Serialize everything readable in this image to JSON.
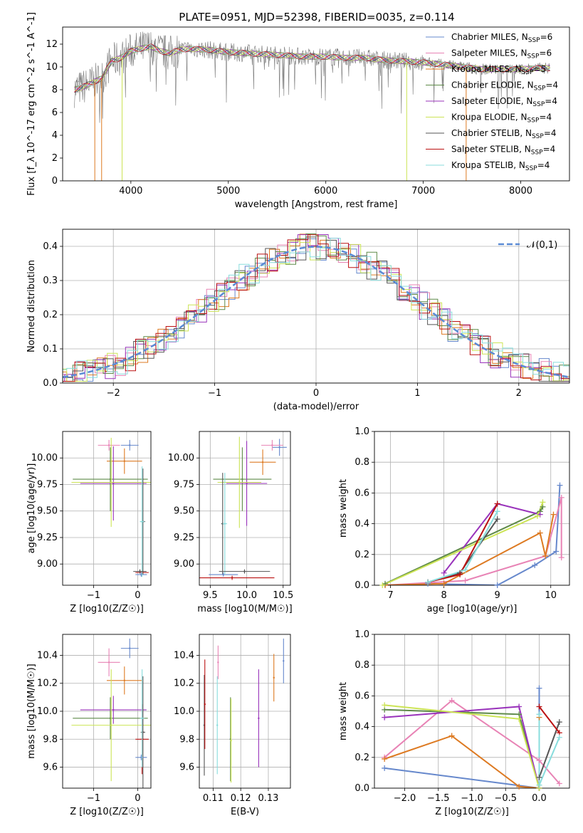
{
  "figure": {
    "title": "PLATE=0951, MJD=52398, FIBERID=0035, z=0.114"
  },
  "models": [
    {
      "name": "Chabrier MILES",
      "n": "6",
      "color": "#6688cc"
    },
    {
      "name": "Salpeter MILES",
      "n": "6",
      "color": "#e883b5"
    },
    {
      "name": "Kroupa MILES",
      "n": "5",
      "color": "#dd7a22"
    },
    {
      "name": "Chabrier ELODIE",
      "n": "4",
      "color": "#5e8a48"
    },
    {
      "name": "Salpeter ELODIE",
      "n": "4",
      "color": "#9933bb"
    },
    {
      "name": "Kroupa ELODIE",
      "n": "4",
      "color": "#cce455"
    },
    {
      "name": "Chabrier STELIB",
      "n": "4",
      "color": "#555555"
    },
    {
      "name": "Salpeter STELIB",
      "n": "4",
      "color": "#bb1111"
    },
    {
      "name": "Kroupa STELIB",
      "n": "4",
      "color": "#88dddd"
    }
  ],
  "chart_data": [
    {
      "id": "spectrum",
      "type": "line",
      "xlabel": "wavelength [Angstrom, rest frame]",
      "ylabel": "Flux [f_λ 10^-17 erg cm^-2 s^-1 A^-1]",
      "xlim": [
        3300,
        8500
      ],
      "ylim": [
        0,
        13.5
      ],
      "xticks": [
        4000,
        5000,
        6000,
        7000,
        8000
      ],
      "yticks": [
        0,
        2,
        4,
        6,
        8,
        10,
        12
      ],
      "legend": "top-right",
      "data_series": {
        "x": [
          3420,
          3500,
          3600,
          3700,
          3800,
          3900,
          4000,
          4100,
          4200,
          4300,
          4400,
          4500,
          4600,
          4800,
          5000,
          5200,
          5400,
          5600,
          5800,
          6000,
          6200,
          6400,
          6600,
          6800,
          7000,
          7200,
          7400,
          7600,
          7800,
          8000,
          8200,
          8300
        ],
        "y": [
          8.0,
          8.2,
          8.6,
          9.0,
          10.5,
          10.8,
          11.4,
          11.6,
          11.8,
          11.4,
          11.2,
          11.5,
          11.6,
          11.5,
          11.3,
          11.2,
          11.1,
          11.0,
          10.9,
          10.9,
          10.8,
          10.8,
          10.6,
          10.5,
          10.4,
          10.2,
          10.0,
          9.8,
          9.8,
          9.8,
          9.9,
          9.9
        ]
      },
      "spikes_x": [
        3630,
        3700,
        3910,
        6830,
        7440
      ]
    },
    {
      "id": "residuals",
      "type": "histogram",
      "xlabel": "(data-model)/error",
      "ylabel": "Normed distribution",
      "xlim": [
        -2.5,
        2.5
      ],
      "ylim": [
        0,
        0.45
      ],
      "xticks": [
        -2,
        -1,
        0,
        1,
        2
      ],
      "yticks": [
        0.0,
        0.1,
        0.2,
        0.3,
        0.4
      ],
      "legend": "top-right",
      "legend_label": "𝒩(0,1)",
      "bin_width": 0.1
    },
    {
      "id": "age_vs_Z",
      "type": "scatter",
      "xlabel": "Z [log10(Z/Z☉)]",
      "ylabel": "age [log10(age/yr)]",
      "xlim": [
        -1.7,
        0.3
      ],
      "ylim": [
        8.8,
        10.25
      ],
      "xticks": [
        -1,
        0
      ],
      "yticks": [
        9.0,
        9.25,
        9.5,
        9.75,
        10.0
      ],
      "points": [
        {
          "x": -0.18,
          "y": 10.12,
          "xerr": 0.2,
          "yerr": 0.05,
          "c": 0
        },
        {
          "x": -0.65,
          "y": 10.12,
          "xerr": 0.25,
          "yerr": 0.05,
          "c": 1
        },
        {
          "x": -0.3,
          "y": 9.97,
          "xerr": 0.4,
          "yerr": 0.12,
          "c": 2
        },
        {
          "x": -0.62,
          "y": 9.8,
          "xerr": 0.85,
          "yerr": 0.3,
          "c": 3
        },
        {
          "x": -0.55,
          "y": 9.76,
          "xerr": 0.75,
          "yerr": 0.35,
          "c": 4
        },
        {
          "x": -0.6,
          "y": 9.77,
          "xerr": 0.9,
          "yerr": 0.42,
          "c": 5
        },
        {
          "x": 0.12,
          "y": 9.4,
          "xerr": 0.05,
          "yerr": 0.5,
          "c": 6
        },
        {
          "x": 0.1,
          "y": 8.92,
          "xerr": 0.15,
          "yerr": 0.02,
          "c": 7
        },
        {
          "x": 0.08,
          "y": 8.9,
          "xerr": 0.13,
          "yerr": 0.02,
          "c": 0
        },
        {
          "x": 0.1,
          "y": 9.4,
          "xerr": 0.05,
          "yerr": 0.52,
          "c": 8
        },
        {
          "x": 0.05,
          "y": 8.93,
          "xerr": 0.15,
          "yerr": 0.02,
          "c": 6
        }
      ]
    },
    {
      "id": "age_vs_mass",
      "type": "scatter",
      "xlabel": "mass [log10(M/M☉)]",
      "ylabel": "",
      "xlim": [
        9.35,
        10.6
      ],
      "ylim": [
        8.8,
        10.25
      ],
      "xticks": [
        9.5,
        10.0,
        10.5
      ],
      "yticks": [
        9.0,
        9.25,
        9.5,
        9.75,
        10.0
      ],
      "points": [
        {
          "x": 10.45,
          "y": 10.1,
          "xerr": 0.1,
          "yerr": 0.08,
          "c": 0
        },
        {
          "x": 10.35,
          "y": 10.12,
          "xerr": 0.15,
          "yerr": 0.05,
          "c": 1
        },
        {
          "x": 10.22,
          "y": 9.96,
          "xerr": 0.18,
          "yerr": 0.12,
          "c": 2
        },
        {
          "x": 9.94,
          "y": 9.8,
          "xerr": 0.4,
          "yerr": 0.3,
          "c": 3
        },
        {
          "x": 10.0,
          "y": 9.76,
          "xerr": 0.28,
          "yerr": 0.4,
          "c": 4
        },
        {
          "x": 9.9,
          "y": 9.77,
          "xerr": 0.3,
          "yerr": 0.43,
          "c": 5
        },
        {
          "x": 9.67,
          "y": 9.38,
          "xerr": 0.02,
          "yerr": 0.48,
          "c": 6
        },
        {
          "x": 9.8,
          "y": 8.87,
          "xerr": 0.58,
          "yerr": 0.02,
          "c": 7
        },
        {
          "x": 9.68,
          "y": 8.9,
          "xerr": 0.2,
          "yerr": 0.02,
          "c": 0
        },
        {
          "x": 9.7,
          "y": 9.38,
          "xerr": 0.03,
          "yerr": 0.48,
          "c": 8
        },
        {
          "x": 9.97,
          "y": 8.93,
          "xerr": 0.35,
          "yerr": 0.02,
          "c": 6
        }
      ]
    },
    {
      "id": "weight_vs_age",
      "type": "line",
      "xlabel": "age [log10(age/yr)]",
      "ylabel": "mass weight",
      "xlim": [
        6.7,
        10.35
      ],
      "ylim": [
        0,
        1
      ],
      "xticks": [
        7,
        8,
        9,
        10
      ],
      "yticks": [
        0.0,
        0.2,
        0.4,
        0.6,
        0.8,
        1.0
      ],
      "series": [
        {
          "c": 0,
          "x": [
            7.7,
            9.0,
            9.7,
            10.1,
            10.17
          ],
          "y": [
            0.01,
            0.0,
            0.13,
            0.22,
            0.65
          ]
        },
        {
          "c": 1,
          "x": [
            6.9,
            8.4,
            9.9,
            10.2,
            10.2
          ],
          "y": [
            0.0,
            0.03,
            0.19,
            0.57,
            0.18
          ]
        },
        {
          "c": 2,
          "x": [
            6.9,
            8.0,
            9.8,
            9.9,
            10.05
          ],
          "y": [
            0.0,
            0.01,
            0.34,
            0.19,
            0.46
          ]
        },
        {
          "c": 3,
          "x": [
            6.9,
            9.8,
            9.85
          ],
          "y": [
            0.01,
            0.48,
            0.51
          ]
        },
        {
          "c": 4,
          "x": [
            8.0,
            9.0,
            9.8
          ],
          "y": [
            0.08,
            0.53,
            0.46
          ]
        },
        {
          "c": 5,
          "x": [
            6.85,
            9.75,
            9.85
          ],
          "y": [
            0.0,
            0.45,
            0.54
          ]
        },
        {
          "c": 6,
          "x": [
            7.7,
            8.3,
            9.0
          ],
          "y": [
            0.02,
            0.08,
            0.43
          ]
        },
        {
          "c": 7,
          "x": [
            7.7,
            8.3,
            9.0
          ],
          "y": [
            0.02,
            0.07,
            0.53
          ]
        },
        {
          "c": 8,
          "x": [
            7.7,
            8.4,
            9.0
          ],
          "y": [
            0.02,
            0.1,
            0.48
          ]
        }
      ]
    },
    {
      "id": "mass_vs_Z",
      "type": "scatter",
      "xlabel": "Z [log10(Z/Z☉)]",
      "ylabel": "mass [log10(M/M☉)]",
      "xlim": [
        -1.7,
        0.3
      ],
      "ylim": [
        9.45,
        10.55
      ],
      "xticks": [
        -1,
        0
      ],
      "yticks": [
        9.6,
        9.8,
        10.0,
        10.2,
        10.4
      ],
      "points": [
        {
          "x": -0.18,
          "y": 10.45,
          "xerr": 0.2,
          "yerr": 0.07,
          "c": 0
        },
        {
          "x": -0.65,
          "y": 10.35,
          "xerr": 0.25,
          "yerr": 0.1,
          "c": 1
        },
        {
          "x": -0.3,
          "y": 10.22,
          "xerr": 0.4,
          "yerr": 0.1,
          "c": 2
        },
        {
          "x": -0.62,
          "y": 9.95,
          "xerr": 0.85,
          "yerr": 0.15,
          "c": 3
        },
        {
          "x": -0.55,
          "y": 10.01,
          "xerr": 0.75,
          "yerr": 0.1,
          "c": 4
        },
        {
          "x": -0.6,
          "y": 9.9,
          "xerr": 0.9,
          "yerr": 0.4,
          "c": 5
        },
        {
          "x": 0.12,
          "y": 9.85,
          "xerr": 0.05,
          "yerr": 0.4,
          "c": 6
        },
        {
          "x": 0.1,
          "y": 9.8,
          "xerr": 0.15,
          "yerr": 0.25,
          "c": 7
        },
        {
          "x": 0.08,
          "y": 9.67,
          "xerr": 0.13,
          "yerr": 0.02,
          "c": 0
        },
        {
          "x": 0.1,
          "y": 9.95,
          "xerr": 0.05,
          "yerr": 0.35,
          "c": 8
        }
      ]
    },
    {
      "id": "mass_vs_ebv",
      "type": "scatter",
      "xlabel": "E(B-V)",
      "ylabel": "",
      "xlim": [
        0.105,
        0.138
      ],
      "ylim": [
        9.45,
        10.55
      ],
      "xticks": [
        0.11,
        0.12,
        0.13
      ],
      "yticks": [
        9.6,
        9.8,
        10.0,
        10.2,
        10.4
      ],
      "points": [
        {
          "x": 0.1355,
          "y": 10.36,
          "yerr": 0.16,
          "c": 0
        },
        {
          "x": 0.1118,
          "y": 10.35,
          "yerr": 0.12,
          "c": 1
        },
        {
          "x": 0.132,
          "y": 10.24,
          "yerr": 0.17,
          "c": 2
        },
        {
          "x": 0.1163,
          "y": 9.8,
          "yerr": 0.3,
          "c": 3
        },
        {
          "x": 0.1265,
          "y": 9.95,
          "yerr": 0.35,
          "c": 4
        },
        {
          "x": 0.1165,
          "y": 9.79,
          "yerr": 0.3,
          "c": 5
        },
        {
          "x": 0.1068,
          "y": 9.9,
          "yerr": 0.36,
          "c": 6
        },
        {
          "x": 0.107,
          "y": 10.05,
          "yerr": 0.32,
          "c": 7
        },
        {
          "x": 0.1115,
          "y": 9.9,
          "yerr": 0.35,
          "c": 8
        }
      ]
    },
    {
      "id": "weight_vs_Z",
      "type": "line",
      "xlabel": "Z [log10(Z/Z☉)]",
      "ylabel": "mass weight",
      "xlim": [
        -2.45,
        0.45
      ],
      "ylim": [
        0,
        1
      ],
      "xticks": [
        -2.0,
        -1.5,
        -1.0,
        -0.5,
        0.0
      ],
      "yticks": [
        0.0,
        0.2,
        0.4,
        0.6,
        0.8,
        1.0
      ],
      "series": [
        {
          "c": 0,
          "x": [
            -2.3,
            0.0,
            0.0
          ],
          "y": [
            0.13,
            0.0,
            0.65
          ]
        },
        {
          "c": 1,
          "x": [
            -2.3,
            -1.3,
            0.0,
            0.3
          ],
          "y": [
            0.2,
            0.57,
            0.18,
            0.03
          ]
        },
        {
          "c": 2,
          "x": [
            -2.3,
            -1.3,
            -0.3,
            0.0,
            0.0
          ],
          "y": [
            0.19,
            0.34,
            0.01,
            0.0,
            0.46
          ]
        },
        {
          "c": 3,
          "x": [
            -2.3,
            -0.3,
            0.0
          ],
          "y": [
            0.51,
            0.48,
            0.0
          ]
        },
        {
          "c": 4,
          "x": [
            -2.3,
            -0.3,
            0.0
          ],
          "y": [
            0.46,
            0.53,
            0.0
          ]
        },
        {
          "c": 5,
          "x": [
            -2.3,
            -0.3,
            0.0
          ],
          "y": [
            0.54,
            0.45,
            0.0
          ]
        },
        {
          "c": 6,
          "x": [
            0.0,
            0.3
          ],
          "y": [
            0.07,
            0.43
          ]
        },
        {
          "c": 7,
          "x": [
            0.0,
            0.3
          ],
          "y": [
            0.53,
            0.36
          ]
        },
        {
          "c": 8,
          "x": [
            0.0,
            0.0,
            0.3
          ],
          "y": [
            0.48,
            0.02,
            0.33
          ]
        }
      ]
    }
  ]
}
